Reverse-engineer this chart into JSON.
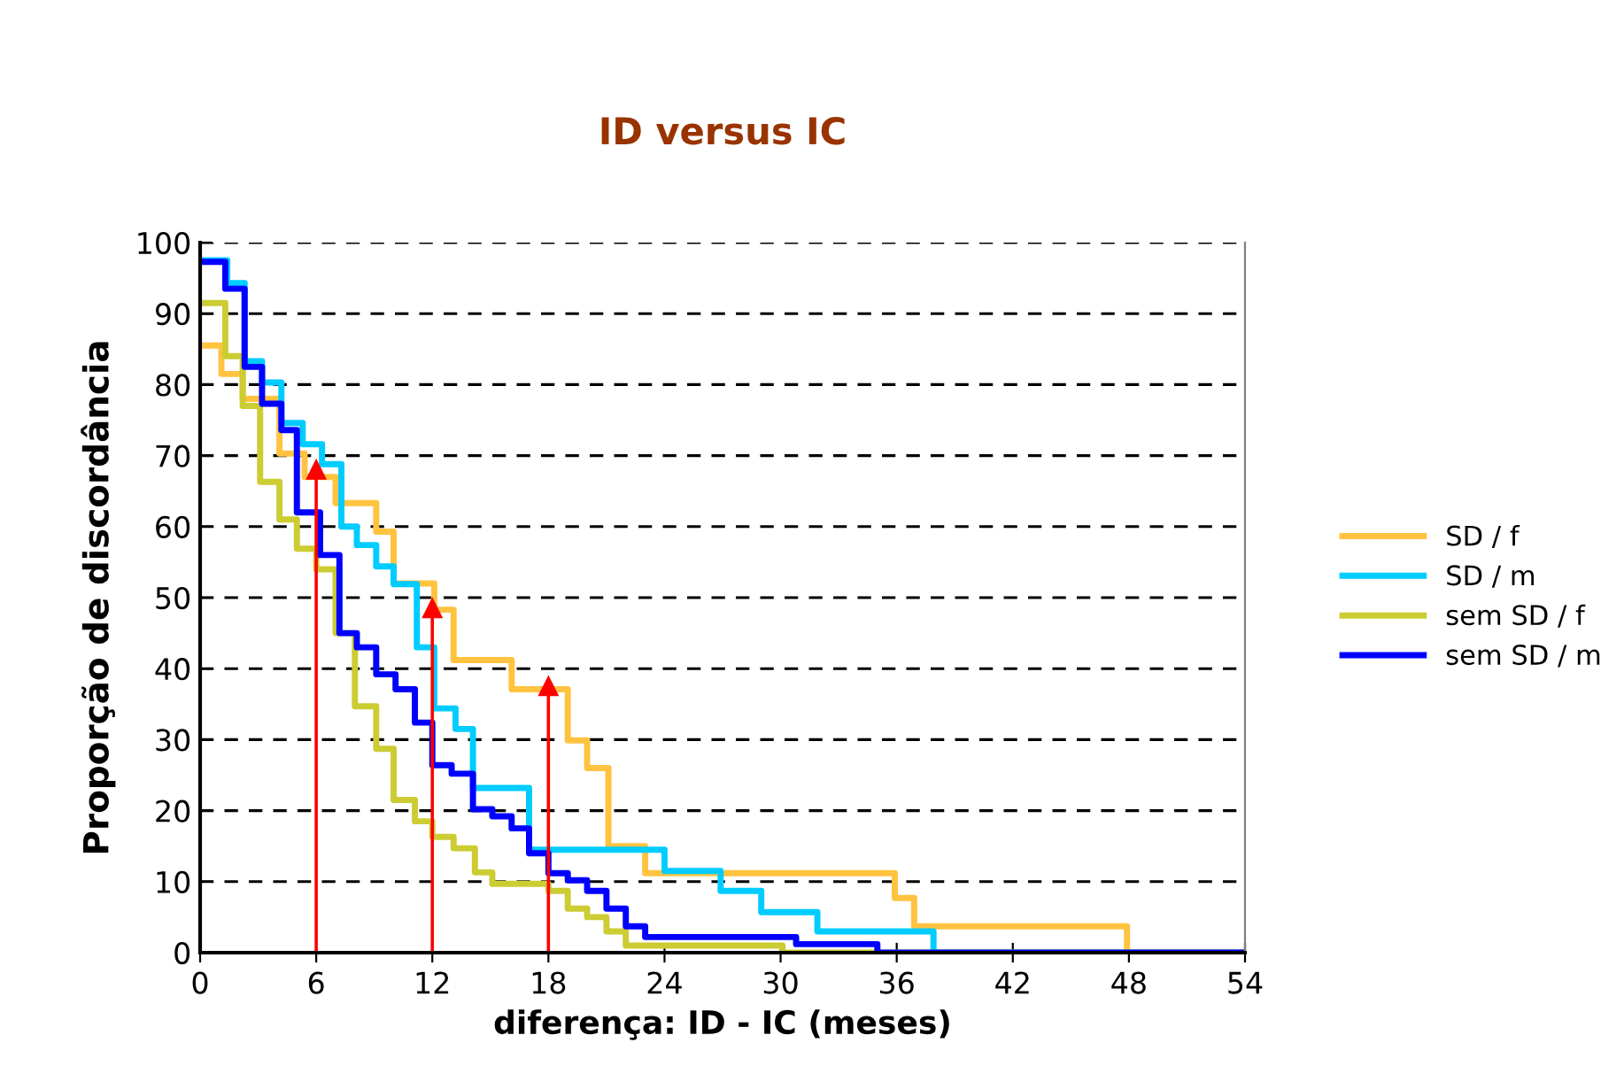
{
  "chart_data": {
    "type": "step",
    "title": "ID versus IC",
    "xlabel": "diferença: ID - IC (meses)",
    "ylabel": "Proporção de discordância",
    "xlim": [
      0,
      54
    ],
    "xticks": [
      0,
      6,
      12,
      18,
      24,
      30,
      36,
      42,
      48,
      54
    ],
    "ylim": [
      0,
      100
    ],
    "yticks": [
      0,
      10,
      20,
      30,
      40,
      50,
      60,
      70,
      80,
      90,
      100
    ],
    "grid": "y",
    "legend": "right",
    "line_style": "solid",
    "marker": "none",
    "series": [
      {
        "name": "SD / f",
        "color": "#ffc340",
        "x": [
          0,
          1.1,
          2.2,
          4.1,
          5.4,
          7,
          9.1,
          10,
          12.1,
          13.1,
          16.1,
          19,
          20,
          21.1,
          23,
          35.9,
          36.9,
          47.9,
          54
        ],
        "values": [
          85.5,
          81.5,
          78,
          70.3,
          67,
          63.3,
          59.3,
          52,
          48.3,
          41.2,
          37.1,
          29.9,
          26,
          15,
          11.2,
          7.7,
          3.7,
          0,
          0
        ]
      },
      {
        "name": "SD / m",
        "color": "#00ccff",
        "x": [
          0,
          1.4,
          2.3,
          3.2,
          4.2,
          5.3,
          6.3,
          7.3,
          8.1,
          9.1,
          10,
          11.2,
          12.1,
          13.2,
          14.1,
          17,
          24,
          26.9,
          29,
          31.9,
          37.9,
          54
        ],
        "values": [
          97.5,
          94.3,
          83.3,
          80.3,
          74.6,
          71.6,
          68.8,
          60,
          57.4,
          54.4,
          51.9,
          43,
          34.4,
          31.5,
          23.2,
          14.5,
          11.5,
          8.7,
          5.7,
          3,
          0,
          0
        ]
      },
      {
        "name": "sem SD / f",
        "color": "#cccc33",
        "x": [
          0,
          1.3,
          2.2,
          3.1,
          4.1,
          5,
          6,
          7,
          8,
          9.1,
          10,
          11.1,
          12,
          13.1,
          14.2,
          15.1,
          18,
          19,
          20,
          21,
          22,
          30.1,
          54
        ],
        "values": [
          91.5,
          84,
          77,
          66.3,
          61,
          56.9,
          54,
          45,
          34.7,
          28.7,
          21.5,
          18.5,
          16.3,
          14.7,
          11.3,
          9.7,
          8.7,
          6.2,
          5,
          3,
          1,
          0,
          0
        ]
      },
      {
        "name": "sem SD / m",
        "color": "#0000ff",
        "x": [
          0,
          1.3,
          2.3,
          3.2,
          4.2,
          5,
          6.2,
          7.2,
          8.1,
          9.1,
          10.1,
          11.1,
          12,
          13,
          14.1,
          15.1,
          16.1,
          17,
          18,
          19,
          20,
          21,
          22,
          23,
          30.8,
          35,
          54
        ],
        "values": [
          97.3,
          93.5,
          82.5,
          77.3,
          73.6,
          62,
          56,
          45,
          43,
          39.2,
          37.1,
          32.4,
          26.4,
          25.2,
          20.2,
          19.2,
          17.5,
          14,
          11.2,
          10.2,
          8.7,
          6.2,
          3.7,
          2.2,
          1.2,
          0,
          0
        ]
      },
      {
        "type": "line",
        "marker": "triangle",
        "color": "#ff0000",
        "x": [
          6,
          6
        ],
        "values": [
          0,
          68
        ]
      },
      {
        "type": "line",
        "marker": "triangle",
        "color": "#ff0000",
        "x": [
          12,
          12
        ],
        "values": [
          0,
          48.5
        ]
      },
      {
        "type": "line",
        "marker": "triangle",
        "color": "#ff0000",
        "x": [
          18,
          18
        ],
        "values": [
          0,
          37.5
        ]
      }
    ]
  }
}
